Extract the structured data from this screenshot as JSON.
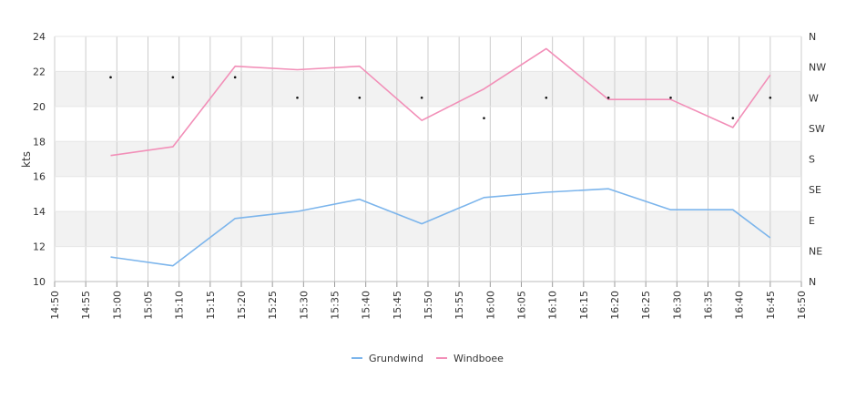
{
  "chart_data": {
    "type": "line",
    "title": "",
    "xlabel": "",
    "ylabel": "kts",
    "ylim": [
      10,
      24
    ],
    "yticks": [
      "10",
      "12",
      "14",
      "16",
      "18",
      "20",
      "22",
      "24"
    ],
    "direction_axis": {
      "labels": [
        "N",
        "NE",
        "E",
        "SE",
        "S",
        "SW",
        "W",
        "NW",
        "N"
      ]
    },
    "xticks": [
      "14:50",
      "14:55",
      "15:00",
      "15:05",
      "15:10",
      "15:15",
      "15:20",
      "15:25",
      "15:30",
      "15:35",
      "15:40",
      "15:45",
      "15:50",
      "15:55",
      "16:00",
      "16:05",
      "16:10",
      "16:15",
      "16:20",
      "16:25",
      "16:30",
      "16:35",
      "16:40",
      "16:45",
      "16:50"
    ],
    "x": [
      "14:59",
      "15:09",
      "15:19",
      "15:29",
      "15:39",
      "15:49",
      "15:59",
      "16:09",
      "16:19",
      "16:29",
      "16:39",
      "16:45"
    ],
    "series": [
      {
        "name": "Grundwind",
        "color": "#7cb5ec",
        "values": [
          11.4,
          10.9,
          13.6,
          14.0,
          14.7,
          13.3,
          14.8,
          15.1,
          15.3,
          14.1,
          14.1,
          12.5
        ]
      },
      {
        "name": "Windboee",
        "color": "#f28fb8",
        "values": [
          17.2,
          17.7,
          22.3,
          22.1,
          22.3,
          19.2,
          21.0,
          23.3,
          20.4,
          20.4,
          18.8,
          21.8
        ]
      }
    ],
    "direction_points": {
      "x": [
        "14:59",
        "15:09",
        "15:19",
        "15:29",
        "15:39",
        "15:49",
        "15:59",
        "16:09",
        "16:19",
        "16:29",
        "16:39",
        "16:45"
      ],
      "bearing_deg": [
        300,
        300,
        300,
        270,
        270,
        270,
        240,
        270,
        270,
        270,
        240,
        270
      ]
    },
    "grid": true,
    "legend_position": "bottom-center"
  }
}
